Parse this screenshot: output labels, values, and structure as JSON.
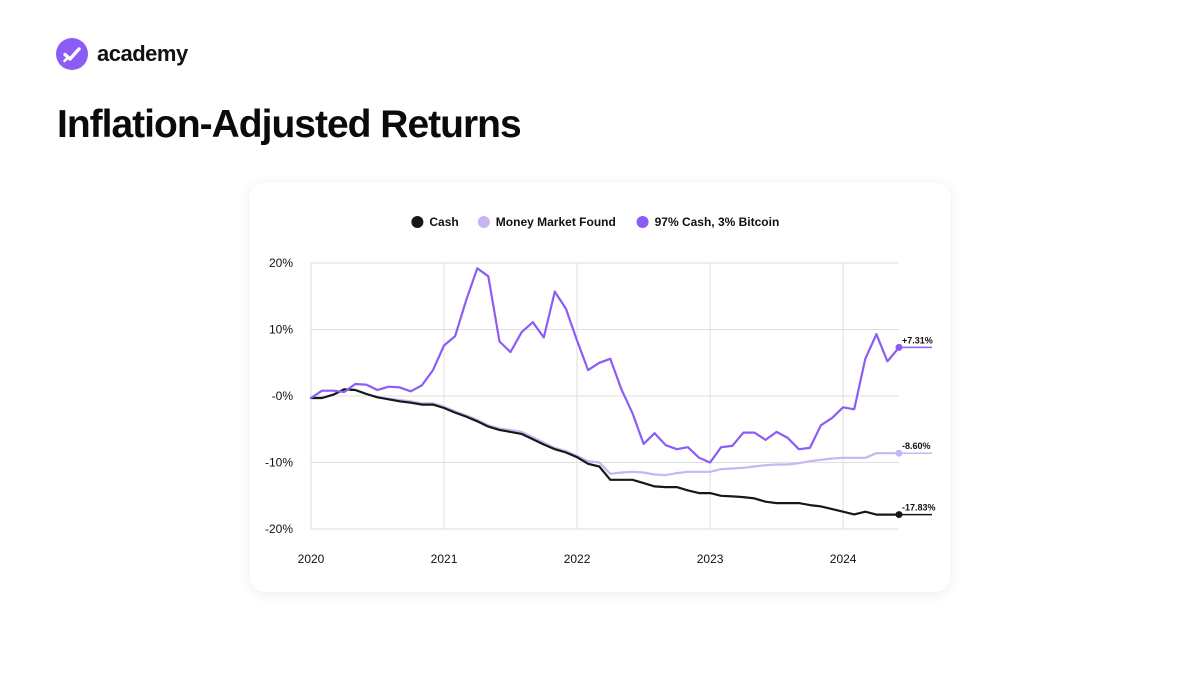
{
  "brand": {
    "name": "academy",
    "logo_icon": "check-badge-icon",
    "accent": "#8B5CF6"
  },
  "page": {
    "title": "Inflation-Adjusted Returns"
  },
  "chart_data": {
    "type": "line",
    "title": "",
    "xlabel": "",
    "ylabel": "",
    "grid": true,
    "legend_position": "top-center",
    "x_ticks": [
      "2020",
      "2021",
      "2022",
      "2023",
      "2024"
    ],
    "y_ticks": [
      {
        "value": 20,
        "label": "20%"
      },
      {
        "value": 10,
        "label": "10%"
      },
      {
        "value": 0,
        "label": "-0%"
      },
      {
        "value": -10,
        "label": "-10%"
      },
      {
        "value": -20,
        "label": "-20%"
      }
    ],
    "xlim": [
      2020.0,
      2024.42
    ],
    "ylim": [
      -20,
      20
    ],
    "x": [
      2020.0,
      2020.083,
      2020.167,
      2020.25,
      2020.333,
      2020.417,
      2020.5,
      2020.583,
      2020.667,
      2020.75,
      2020.833,
      2020.917,
      2021.0,
      2021.083,
      2021.167,
      2021.25,
      2021.333,
      2021.417,
      2021.5,
      2021.583,
      2021.667,
      2021.75,
      2021.833,
      2021.917,
      2022.0,
      2022.083,
      2022.167,
      2022.25,
      2022.333,
      2022.417,
      2022.5,
      2022.583,
      2022.667,
      2022.75,
      2022.833,
      2022.917,
      2023.0,
      2023.083,
      2023.167,
      2023.25,
      2023.333,
      2023.417,
      2023.5,
      2023.583,
      2023.667,
      2023.75,
      2023.833,
      2023.917,
      2024.0,
      2024.083,
      2024.167,
      2024.25,
      2024.333,
      2024.42
    ],
    "series": [
      {
        "name": "Cash",
        "color": "#141a16",
        "end_label": "-17.83%",
        "values": [
          -0.3,
          -0.3,
          0.2,
          1.0,
          0.9,
          0.3,
          -0.2,
          -0.5,
          -0.8,
          -1.0,
          -1.3,
          -1.3,
          -1.8,
          -2.5,
          -3.1,
          -3.8,
          -4.6,
          -5.1,
          -5.4,
          -5.7,
          -6.5,
          -7.3,
          -8.0,
          -8.5,
          -9.2,
          -10.2,
          -10.6,
          -12.6,
          -12.6,
          -12.6,
          -13.1,
          -13.6,
          -13.7,
          -13.7,
          -14.2,
          -14.6,
          -14.6,
          -15.0,
          -15.1,
          -15.2,
          -15.4,
          -15.9,
          -16.1,
          -16.1,
          -16.1,
          -16.4,
          -16.6,
          -17.0,
          -17.4,
          -17.8,
          -17.4,
          -17.83,
          -17.83,
          -17.83
        ]
      },
      {
        "name": "Money Market Found",
        "color": "#c9b5f3",
        "end_label": "-8.60%",
        "values": [
          -0.3,
          -0.3,
          0.2,
          1.0,
          0.9,
          0.3,
          -0.2,
          -0.4,
          -0.6,
          -0.8,
          -1.1,
          -1.1,
          -1.6,
          -2.3,
          -2.9,
          -3.6,
          -4.4,
          -4.9,
          -5.1,
          -5.4,
          -6.2,
          -7.0,
          -7.8,
          -8.3,
          -9.0,
          -9.8,
          -10.0,
          -11.7,
          -11.5,
          -11.4,
          -11.5,
          -11.8,
          -11.9,
          -11.6,
          -11.4,
          -11.4,
          -11.4,
          -11.0,
          -10.9,
          -10.8,
          -10.6,
          -10.4,
          -10.3,
          -10.3,
          -10.1,
          -9.8,
          -9.6,
          -9.4,
          -9.3,
          -9.3,
          -9.3,
          -8.6,
          -8.6,
          -8.6
        ]
      },
      {
        "name": "97% Cash, 3% Bitcoin",
        "color": "#8B5CF6",
        "end_label": "+7.31%",
        "values": [
          -0.3,
          0.8,
          0.8,
          0.6,
          1.8,
          1.7,
          0.9,
          1.4,
          1.3,
          0.7,
          1.6,
          3.9,
          7.6,
          9.0,
          14.4,
          19.2,
          18.0,
          8.2,
          6.6,
          9.6,
          11.1,
          8.8,
          15.7,
          13.1,
          8.3,
          3.9,
          5.0,
          5.6,
          1.0,
          -2.6,
          -7.2,
          -5.6,
          -7.4,
          -8.0,
          -7.7,
          -9.3,
          -10.0,
          -7.7,
          -7.5,
          -5.5,
          -5.5,
          -6.6,
          -5.4,
          -6.3,
          -8.0,
          -7.8,
          -4.4,
          -3.3,
          -1.7,
          -2.0,
          5.6,
          9.3,
          5.2,
          7.31
        ]
      }
    ]
  }
}
